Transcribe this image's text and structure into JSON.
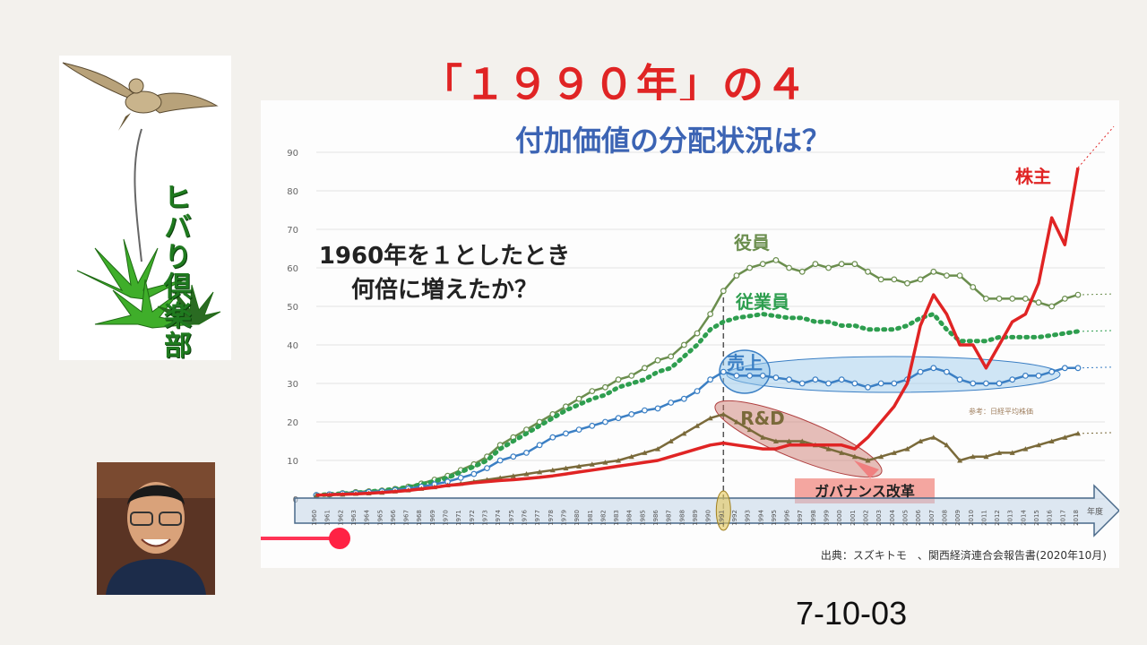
{
  "slide": {
    "title": "「１９９０年」の４",
    "code": "7-10-03",
    "club_name": "ヒバり倶楽部"
  },
  "chart_data": {
    "type": "line",
    "title": "付加価値の分配状況は？",
    "question": "1960年を１としたとき\n何倍に増えたか？",
    "xlabel": "年度",
    "ylim": [
      0,
      90
    ],
    "yticks": [
      0,
      10,
      20,
      30,
      40,
      50,
      60,
      70,
      80,
      90
    ],
    "x": [
      1960,
      1961,
      1962,
      1963,
      1964,
      1965,
      1966,
      1967,
      1968,
      1969,
      1970,
      1971,
      1972,
      1973,
      1974,
      1975,
      1976,
      1977,
      1978,
      1979,
      1980,
      1981,
      1982,
      1983,
      1984,
      1985,
      1986,
      1987,
      1988,
      1989,
      1990,
      1991,
      1992,
      1993,
      1994,
      1995,
      1996,
      1997,
      1998,
      1999,
      2000,
      2001,
      2002,
      2003,
      2004,
      2005,
      2006,
      2007,
      2008,
      2009,
      2010,
      2011,
      2012,
      2013,
      2014,
      2015,
      2016,
      2017,
      2018
    ],
    "xtick_labels": [
      "1960",
      "1961",
      "1962",
      "1963",
      "1964",
      "1965",
      "1966",
      "1967",
      "1968",
      "1969",
      "1970",
      "1971",
      "1972",
      "1973",
      "1974",
      "1975",
      "1976",
      "1977",
      "1978",
      "1979",
      "1980",
      "1981",
      "1982",
      "1983",
      "1984",
      "1985",
      "1986",
      "1987",
      "1988",
      "1989",
      "1990",
      "1991",
      "1992",
      "1993",
      "1994",
      "1995",
      "1996",
      "1997",
      "1998",
      "1999",
      "2000",
      "2001",
      "2002",
      "2003",
      "2004",
      "2005",
      "2006",
      "2007",
      "2008",
      "2009",
      "2010",
      "2011",
      "2012",
      "2013",
      "2014",
      "2015",
      "2016",
      "2017",
      "2018"
    ],
    "highlight_year": 1991,
    "series": [
      {
        "name": "役員",
        "color": "#6b8e4e",
        "style": "solid-markers",
        "values": [
          1,
          1.2,
          1.5,
          1.8,
          2,
          2.2,
          2.6,
          3.2,
          4,
          5,
          6,
          7.5,
          9,
          11,
          14,
          16,
          18,
          20,
          22,
          24,
          26,
          28,
          29,
          31,
          32,
          34,
          36,
          37,
          40,
          43,
          48,
          54,
          58,
          60,
          61,
          62,
          60,
          59,
          61,
          60,
          61,
          61,
          59,
          57,
          57,
          56,
          57,
          59,
          58,
          58,
          55,
          52,
          52,
          52,
          52,
          51,
          50,
          52,
          53
        ]
      },
      {
        "name": "従業員",
        "color": "#2e9e4f",
        "style": "dotted",
        "values": [
          1,
          1.2,
          1.4,
          1.6,
          1.9,
          2.2,
          2.6,
          3.1,
          3.8,
          4.6,
          5.5,
          7,
          8.4,
          10,
          13,
          15,
          17,
          19,
          21,
          23,
          24.5,
          26,
          27,
          29,
          30,
          31,
          33,
          34,
          37,
          40,
          44,
          46,
          47,
          47.5,
          48,
          47.5,
          47,
          47,
          46,
          46,
          45,
          45,
          44,
          44,
          44,
          45,
          47,
          48,
          44,
          41,
          41,
          41,
          42,
          42,
          42,
          42,
          42.5,
          43,
          43.5
        ]
      },
      {
        "name": "売上",
        "color": "#3b7fc4",
        "style": "solid-markers",
        "values": [
          1,
          1.2,
          1.4,
          1.6,
          1.8,
          2,
          2.3,
          2.7,
          3.2,
          3.8,
          4.5,
          5.5,
          6.5,
          8,
          10,
          11,
          12,
          14,
          16,
          17,
          18,
          19,
          20,
          21,
          22,
          23,
          23.5,
          25,
          26,
          28,
          31,
          33,
          32,
          32,
          32,
          31.5,
          31,
          30,
          31,
          30,
          31,
          30,
          29,
          30,
          30,
          31,
          33,
          34,
          33,
          31,
          30,
          30,
          30,
          31,
          32,
          32,
          33,
          34,
          34
        ]
      },
      {
        "name": "R&D",
        "color": "#7a6a3a",
        "style": "solid-triangles",
        "values": [
          1,
          1.1,
          1.2,
          1.4,
          1.5,
          1.7,
          2,
          2.3,
          2.7,
          3.1,
          3.6,
          4,
          4.5,
          5,
          5.5,
          6,
          6.5,
          7,
          7.5,
          8,
          8.5,
          9,
          9.5,
          10,
          11,
          12,
          13,
          15,
          17,
          19,
          21,
          22,
          20,
          18,
          16,
          15,
          15,
          15,
          14,
          13,
          12,
          11,
          10,
          11,
          12,
          13,
          15,
          16,
          14,
          10,
          11,
          11,
          12,
          12,
          13,
          14,
          15,
          16,
          17
        ]
      },
      {
        "name": "株主",
        "color": "#e02424",
        "style": "solid",
        "values": [
          1,
          1.1,
          1.2,
          1.3,
          1.5,
          1.7,
          1.9,
          2.2,
          2.6,
          3,
          3.5,
          3.8,
          4.2,
          4.5,
          4.8,
          5,
          5.3,
          5.6,
          6,
          6.5,
          7,
          7.5,
          8,
          8.5,
          9,
          9.5,
          10,
          11,
          12,
          13,
          14,
          14.5,
          14,
          13.5,
          13,
          13,
          14,
          14,
          14,
          14,
          14,
          13,
          16,
          20,
          24,
          30,
          45,
          53,
          48,
          40,
          40,
          34,
          40,
          46,
          48,
          56,
          73,
          66,
          86
        ]
      }
    ],
    "annotations": {
      "sales_oval_label": "売上",
      "rnd_oval_label": "R&D",
      "governance_label": "ガバナンス改革",
      "nikkei_label": "参考：日経平均株価",
      "source": "出典：スズキトモ　、関西経済連合会報告書(2020年10月)"
    }
  }
}
